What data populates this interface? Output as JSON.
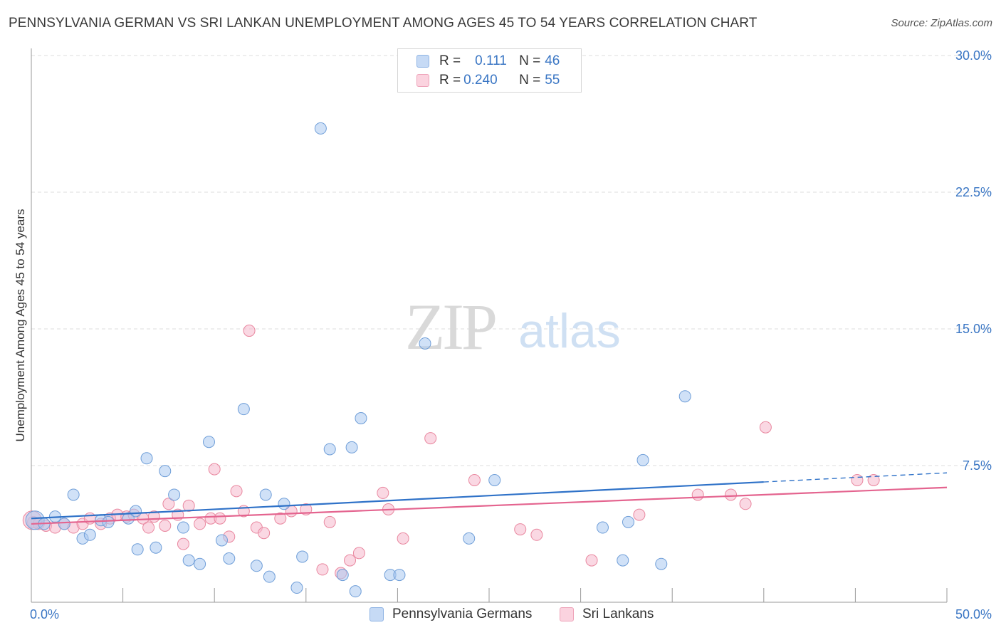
{
  "header": {
    "title": "PENNSYLVANIA GERMAN VS SRI LANKAN UNEMPLOYMENT AMONG AGES 45 TO 54 YEARS CORRELATION CHART",
    "source": "Source: ZipAtlas.com"
  },
  "watermark": {
    "zip": "ZIP",
    "atlas": "atlas"
  },
  "legend": {
    "rows": [
      {
        "r_label": "R = ",
        "r_value": "0.111",
        "n_label": "N = ",
        "n_value": "46",
        "color": "#aac8f0"
      },
      {
        "r_label": "R = ",
        "r_value": "0.240",
        "n_label": "N = ",
        "n_value": "55",
        "color": "#f6b8cc"
      }
    ]
  },
  "bottom_legend": {
    "items": [
      {
        "label": "Pennsylvania Germans",
        "color": "#aac8f0"
      },
      {
        "label": "Sri Lankans",
        "color": "#f6b8cc"
      }
    ]
  },
  "colors": {
    "blue_fill": "#aac8f0",
    "blue_stroke": "#6f9ed8",
    "blue_line": "#2f72c8",
    "pink_fill": "#f6b8cc",
    "pink_stroke": "#e9879f",
    "pink_line": "#e4648f",
    "grid": "#dddddd",
    "tick_label": "#3a76c4"
  },
  "chart_data": {
    "type": "scatter",
    "title": "PENNSYLVANIA GERMAN VS SRI LANKAN UNEMPLOYMENT AMONG AGES 45 TO 54 YEARS CORRELATION CHART",
    "xlabel": "",
    "ylabel": "Unemployment Among Ages 45 to 54 years",
    "xlim": [
      0,
      50
    ],
    "ylim": [
      0,
      30
    ],
    "x_tick_labels": [
      {
        "value": 0,
        "label": "0.0%"
      },
      {
        "value": 50,
        "label": "50.0%"
      }
    ],
    "y_tick_labels": [
      {
        "value": 7.5,
        "label": "7.5%"
      },
      {
        "value": 15,
        "label": "15.0%"
      },
      {
        "value": 22.5,
        "label": "22.5%"
      },
      {
        "value": 30,
        "label": "30.0%"
      }
    ],
    "x_minor_ticks": [
      0,
      5,
      10,
      15,
      20,
      25,
      30,
      35,
      40,
      45,
      50
    ],
    "series": [
      {
        "name": "Pennsylvania Germans",
        "R": 0.111,
        "N": 46,
        "trend": {
          "x0": 0,
          "y0": 4.6,
          "x1": 40,
          "y1": 6.6,
          "dashed_to_x": 50,
          "dashed_to_y": 7.1
        },
        "points": [
          [
            0.2,
            4.5
          ],
          [
            0.7,
            4.3
          ],
          [
            1.3,
            4.7
          ],
          [
            1.8,
            4.3
          ],
          [
            2.3,
            5.9
          ],
          [
            2.8,
            3.5
          ],
          [
            3.2,
            3.7
          ],
          [
            3.8,
            4.5
          ],
          [
            4.2,
            4.4
          ],
          [
            5.3,
            4.6
          ],
          [
            5.7,
            5.0
          ],
          [
            5.8,
            2.9
          ],
          [
            6.3,
            7.9
          ],
          [
            6.8,
            3.0
          ],
          [
            7.3,
            7.2
          ],
          [
            7.8,
            5.9
          ],
          [
            8.3,
            4.1
          ],
          [
            8.6,
            2.3
          ],
          [
            9.2,
            2.1
          ],
          [
            9.7,
            8.8
          ],
          [
            10.4,
            3.4
          ],
          [
            10.8,
            2.4
          ],
          [
            11.6,
            10.6
          ],
          [
            12.3,
            2.0
          ],
          [
            12.8,
            5.9
          ],
          [
            13.0,
            1.4
          ],
          [
            13.8,
            5.4
          ],
          [
            14.5,
            0.8
          ],
          [
            14.8,
            2.5
          ],
          [
            15.8,
            26.0
          ],
          [
            16.3,
            8.4
          ],
          [
            17.0,
            1.5
          ],
          [
            17.5,
            8.5
          ],
          [
            17.7,
            0.6
          ],
          [
            18.0,
            10.1
          ],
          [
            19.6,
            1.5
          ],
          [
            20.1,
            1.5
          ],
          [
            21.5,
            14.2
          ],
          [
            23.9,
            3.5
          ],
          [
            25.3,
            6.7
          ],
          [
            31.2,
            4.1
          ],
          [
            32.3,
            2.3
          ],
          [
            32.6,
            4.4
          ],
          [
            33.4,
            7.8
          ],
          [
            34.4,
            2.1
          ],
          [
            35.7,
            11.3
          ]
        ]
      },
      {
        "name": "Sri Lankans",
        "R": 0.24,
        "N": 55,
        "trend": {
          "x0": 0,
          "y0": 4.3,
          "x1": 50,
          "y1": 6.3
        },
        "points": [
          [
            0.1,
            4.4
          ],
          [
            0.4,
            4.3
          ],
          [
            0.8,
            4.2
          ],
          [
            1.3,
            4.1
          ],
          [
            1.8,
            4.3
          ],
          [
            2.3,
            4.1
          ],
          [
            2.8,
            4.3
          ],
          [
            3.2,
            4.6
          ],
          [
            3.8,
            4.3
          ],
          [
            4.3,
            4.6
          ],
          [
            4.7,
            4.8
          ],
          [
            5.2,
            4.7
          ],
          [
            5.6,
            4.8
          ],
          [
            6.1,
            4.6
          ],
          [
            6.4,
            4.1
          ],
          [
            6.7,
            4.7
          ],
          [
            7.3,
            4.2
          ],
          [
            7.5,
            5.4
          ],
          [
            8.0,
            4.8
          ],
          [
            8.3,
            3.2
          ],
          [
            8.6,
            5.3
          ],
          [
            9.2,
            4.3
          ],
          [
            9.8,
            4.6
          ],
          [
            10.0,
            7.3
          ],
          [
            10.3,
            4.6
          ],
          [
            10.8,
            3.6
          ],
          [
            11.2,
            6.1
          ],
          [
            11.6,
            5.0
          ],
          [
            11.9,
            14.9
          ],
          [
            12.3,
            4.1
          ],
          [
            12.7,
            3.8
          ],
          [
            13.6,
            4.6
          ],
          [
            14.2,
            5.0
          ],
          [
            15.0,
            5.1
          ],
          [
            15.9,
            1.8
          ],
          [
            16.3,
            4.4
          ],
          [
            16.9,
            1.6
          ],
          [
            17.4,
            2.3
          ],
          [
            17.9,
            2.7
          ],
          [
            19.2,
            6.0
          ],
          [
            19.5,
            5.1
          ],
          [
            20.3,
            3.5
          ],
          [
            21.8,
            9.0
          ],
          [
            24.2,
            6.7
          ],
          [
            26.7,
            4.0
          ],
          [
            27.6,
            3.7
          ],
          [
            30.6,
            2.3
          ],
          [
            33.2,
            4.8
          ],
          [
            36.4,
            5.9
          ],
          [
            38.2,
            5.9
          ],
          [
            39.0,
            5.4
          ],
          [
            40.1,
            9.6
          ],
          [
            45.1,
            6.7
          ],
          [
            46.0,
            6.7
          ],
          [
            0.05,
            4.5
          ]
        ]
      }
    ]
  }
}
